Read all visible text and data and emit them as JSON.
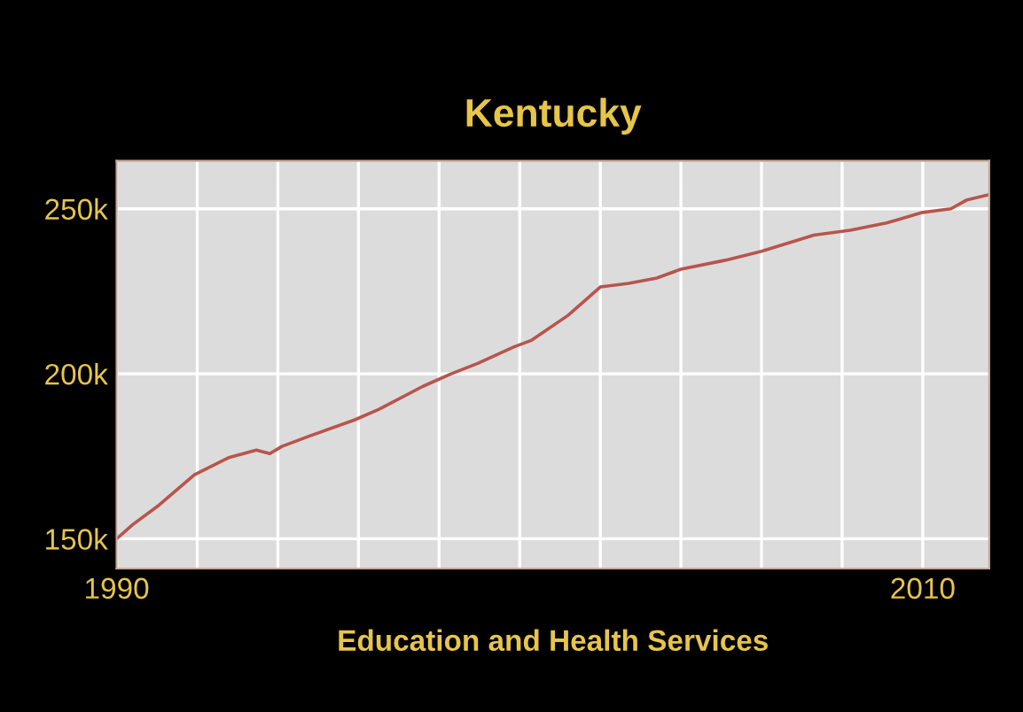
{
  "chart_data": {
    "type": "line",
    "title": "Kentucky",
    "xlabel": "Education and Health Services",
    "x": [
      1990.0,
      1990.4,
      1991.05,
      1991.93,
      1992.8,
      1993.47,
      1993.8,
      1994.1,
      1994.8,
      1995.9,
      1996.5,
      1997.6,
      1998.3,
      1998.97,
      1999.85,
      2000.3,
      2001.2,
      2002.0,
      2002.7,
      2003.4,
      2004.0,
      2005.1,
      2006.0,
      2007.3,
      2008.2,
      2009.1,
      2010.0,
      2010.7,
      2011.1,
      2011.65
    ],
    "series": [
      {
        "color": "#b8554c",
        "values": [
          150000,
          154300,
          160200,
          169400,
          174700,
          176900,
          175800,
          178000,
          181200,
          186000,
          189200,
          196200,
          200000,
          203200,
          208100,
          210200,
          217700,
          226300,
          227400,
          229000,
          231700,
          234400,
          237100,
          242000,
          243500,
          245700,
          248900,
          250000,
          252700,
          254300
        ]
      }
    ],
    "xlim": [
      1990,
      2011.65
    ],
    "ylim": [
      141000,
      264500
    ],
    "xticks": [
      1990,
      {
        "value": 1992,
        "label": null
      },
      {
        "value": 1994,
        "label": null
      },
      {
        "value": 1996,
        "label": null
      },
      {
        "value": 1998,
        "label": null
      },
      {
        "value": 2000,
        "label": null
      },
      {
        "value": 2002,
        "label": null
      },
      {
        "value": 2004,
        "label": null
      },
      {
        "value": 2006,
        "label": null
      },
      {
        "value": 2008,
        "label": null
      },
      2010
    ],
    "yticks": [
      {
        "value": 150000,
        "label": "150k"
      },
      {
        "value": 200000,
        "label": "200k"
      },
      {
        "value": 250000,
        "label": "250k"
      }
    ],
    "grid": true,
    "marker": "none",
    "line_style": "solid"
  }
}
